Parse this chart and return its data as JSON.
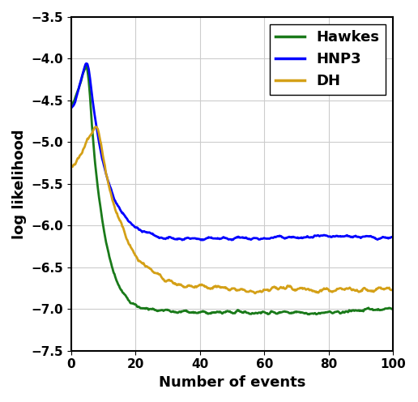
{
  "title": "",
  "xlabel": "Number of events",
  "ylabel": "log likelihood",
  "xlim": [
    0,
    100
  ],
  "ylim": [
    -7.5,
    -3.5
  ],
  "yticks": [
    -7.5,
    -7.0,
    -6.5,
    -6.0,
    -5.5,
    -5.0,
    -4.5,
    -4.0,
    -3.5
  ],
  "xticks": [
    0,
    20,
    40,
    60,
    80,
    100
  ],
  "hawkes_color": "#1a7a1a",
  "hnp3_color": "#0000ff",
  "dh_color": "#d4a017",
  "linewidth": 2.0,
  "legend_labels": [
    "Hawkes",
    "HNP3",
    "DH"
  ],
  "legend_fontsize": 13,
  "axis_fontsize": 13,
  "tick_fontsize": 11,
  "background_color": "#ffffff",
  "grid_color": "#cccccc"
}
